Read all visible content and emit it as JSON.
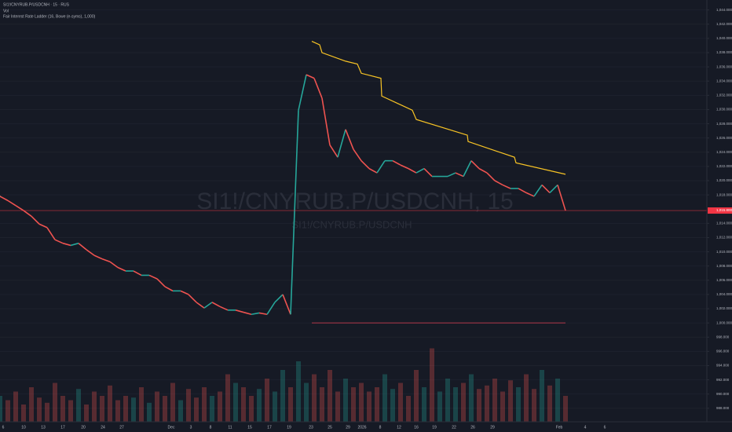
{
  "chart_data": {
    "type": "line",
    "title": "SI1!/CNYRUB.P/USDCNH · 15 · RUS",
    "legend_lines": [
      "Vol",
      "Fair Interest Rate Ladder (16, Bowe (e-syms), 1,000)"
    ],
    "watermark": "SI1!/CNYRUB.P/USDCNH, 15",
    "watermark_sub": "SI1!/CNYRUB.P/USDCNH",
    "xlim": [
      0,
      900
    ],
    "ylim": [
      986.1,
      1045.4
    ],
    "grid": true,
    "x": [
      0,
      10,
      20,
      30,
      40,
      50,
      60,
      70,
      80,
      90,
      100,
      110,
      120,
      130,
      140,
      150,
      160,
      170,
      180,
      190,
      200,
      210,
      220,
      230,
      240,
      250,
      260,
      270,
      280,
      290,
      300,
      310,
      320,
      330,
      340,
      350,
      360,
      370,
      380,
      390,
      400,
      410,
      420,
      430,
      440,
      450,
      460,
      470,
      480,
      490,
      500,
      510,
      520,
      530,
      540,
      550,
      560,
      570,
      580,
      590,
      600,
      610,
      620,
      630,
      640,
      650,
      660,
      670,
      680,
      690,
      700,
      710,
      720
    ],
    "series": [
      {
        "name": "SI1!/CNYRUB.P/USDCNH",
        "up_color": "#26a69a",
        "down_color": "#ef5350",
        "values": [
          1017.8,
          1017.2,
          1016.5,
          1015.8,
          1015.0,
          1013.9,
          1013.4,
          1011.7,
          1011.2,
          1010.9,
          1011.2,
          1010.3,
          1009.5,
          1009.0,
          1008.6,
          1007.8,
          1007.3,
          1007.3,
          1006.7,
          1006.7,
          1006.2,
          1005.1,
          1004.5,
          1004.5,
          1004.0,
          1002.9,
          1002.1,
          1002.9,
          1002.3,
          1001.8,
          1001.8,
          1001.5,
          1001.2,
          1001.4,
          1001.2,
          1002.9,
          1004.0,
          1001.2,
          1029.9,
          1034.9,
          1034.4,
          1031.6,
          1025.0,
          1023.3,
          1027.2,
          1024.4,
          1022.8,
          1021.7,
          1021.1,
          1022.8,
          1022.8,
          1022.2,
          1021.7,
          1021.1,
          1021.7,
          1020.6,
          1020.6,
          1020.6,
          1021.1,
          1020.6,
          1022.8,
          1021.7,
          1021.1,
          1020.0,
          1019.4,
          1018.9,
          1018.9,
          1018.3,
          1017.8,
          1019.4,
          1018.3,
          1019.4,
          1015.8
        ],
        "volume": [
          30,
          25,
          35,
          20,
          40,
          28,
          22,
          45,
          30,
          25,
          38,
          20,
          35,
          30,
          42,
          25,
          30,
          28,
          40,
          22,
          35,
          30,
          45,
          25,
          38,
          28,
          40,
          30,
          35,
          55,
          45,
          40,
          30,
          38,
          50,
          35,
          60,
          40,
          70,
          45,
          55,
          40,
          60,
          35,
          50,
          40,
          45,
          35,
          40,
          55,
          38,
          45,
          30,
          60,
          40,
          85,
          35,
          50,
          40,
          45,
          55,
          38,
          42,
          50,
          35,
          48,
          40,
          55,
          38,
          60,
          42,
          50,
          30
        ]
      }
    ],
    "volume_lim": [
      0,
      100
    ],
    "ladder": {
      "color": "#f7c325",
      "x": [
        397,
        407,
        410,
        440,
        455,
        460,
        485,
        486,
        525,
        530,
        595,
        596,
        655,
        657,
        720
      ],
      "values": [
        1039.6,
        1039.1,
        1038.0,
        1036.8,
        1036.4,
        1035.1,
        1034.4,
        1031.9,
        1029.9,
        1028.6,
        1026.4,
        1025.5,
        1023.3,
        1022.5,
        1020.9
      ]
    },
    "level": {
      "value": 1000,
      "x": [
        397,
        720
      ],
      "color": "#b2384a"
    },
    "last_price": {
      "value": 1015.8,
      "label": "1,015.800",
      "color": "#f23645"
    },
    "yticks": [
      {
        "value": 988,
        "label": "988.000"
      },
      {
        "value": 990,
        "label": "990.000"
      },
      {
        "value": 992,
        "label": "992.000"
      },
      {
        "value": 994,
        "label": "994.000"
      },
      {
        "value": 996,
        "label": "996.000"
      },
      {
        "value": 998,
        "label": "998.000"
      },
      {
        "value": 1000,
        "label": "1,000.000"
      },
      {
        "value": 1002,
        "label": "1,002.000"
      },
      {
        "value": 1004,
        "label": "1,004.000"
      },
      {
        "value": 1006,
        "label": "1,006.000"
      },
      {
        "value": 1008,
        "label": "1,008.000"
      },
      {
        "value": 1010,
        "label": "1,010.000"
      },
      {
        "value": 1012,
        "label": "1,012.000"
      },
      {
        "value": 1014,
        "label": "1,014.000"
      },
      {
        "value": 1018,
        "label": "1,018.000"
      },
      {
        "value": 1020,
        "label": "1,020.000"
      },
      {
        "value": 1022,
        "label": "1,022.000"
      },
      {
        "value": 1024,
        "label": "1,024.000"
      },
      {
        "value": 1026,
        "label": "1,026.000"
      },
      {
        "value": 1028,
        "label": "1,028.000"
      },
      {
        "value": 1030,
        "label": "1,030.000"
      },
      {
        "value": 1032,
        "label": "1,032.000"
      },
      {
        "value": 1034,
        "label": "1,034.000"
      },
      {
        "value": 1036,
        "label": "1,036.000"
      },
      {
        "value": 1038,
        "label": "1,038.000"
      },
      {
        "value": 1040,
        "label": "1,040.000"
      },
      {
        "value": 1042,
        "label": "1,042.000"
      },
      {
        "value": 1044,
        "label": "1,044.000"
      }
    ],
    "x_axis_labels": [
      "6",
      "10",
      "13",
      "17",
      "20",
      "24",
      "27",
      "Dec",
      "3",
      "8",
      "11",
      "15",
      "17",
      "19",
      "23",
      "25",
      "29",
      "2026",
      "8",
      "12",
      "16",
      "19",
      "22",
      "26",
      "29",
      "Feb",
      "4",
      "6"
    ]
  }
}
